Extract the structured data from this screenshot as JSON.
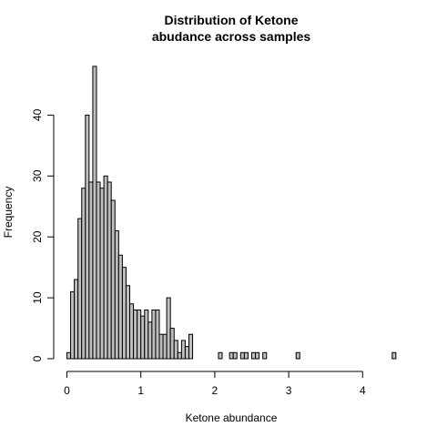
{
  "chart_data": {
    "type": "bar",
    "title": [
      "Distribution of Ketone",
      "abudance across samples"
    ],
    "xlabel": "Ketone abundance",
    "ylabel": "Frequency",
    "bin_start": 0,
    "bin_width": 0.05,
    "xlim": [
      0,
      4.45
    ],
    "ylim": [
      0,
      48
    ],
    "x_ticks": [
      0,
      1,
      2,
      3,
      4
    ],
    "y_ticks": [
      0,
      10,
      20,
      30,
      40
    ],
    "counts": [
      1,
      11,
      13,
      23,
      28,
      40,
      29,
      48,
      29,
      28,
      30,
      29,
      26,
      21,
      17,
      15,
      12,
      9,
      8,
      8,
      7,
      8,
      6,
      8,
      8,
      4,
      4,
      10,
      5,
      3,
      1,
      3,
      2,
      4,
      0,
      0,
      0,
      0,
      0,
      0,
      0,
      1,
      0,
      0,
      1,
      1,
      0,
      1,
      1,
      0,
      1,
      1,
      0,
      1,
      0,
      0,
      0,
      0,
      0,
      0,
      0,
      0,
      0,
      0,
      0,
      0,
      0,
      0,
      0,
      0,
      0,
      0,
      0,
      0,
      0,
      0,
      0,
      0,
      0,
      0,
      0,
      0,
      0,
      0,
      0,
      0,
      0,
      0,
      1
    ],
    "extra_bars": [
      {
        "x": 3.1,
        "count": 1
      }
    ]
  }
}
